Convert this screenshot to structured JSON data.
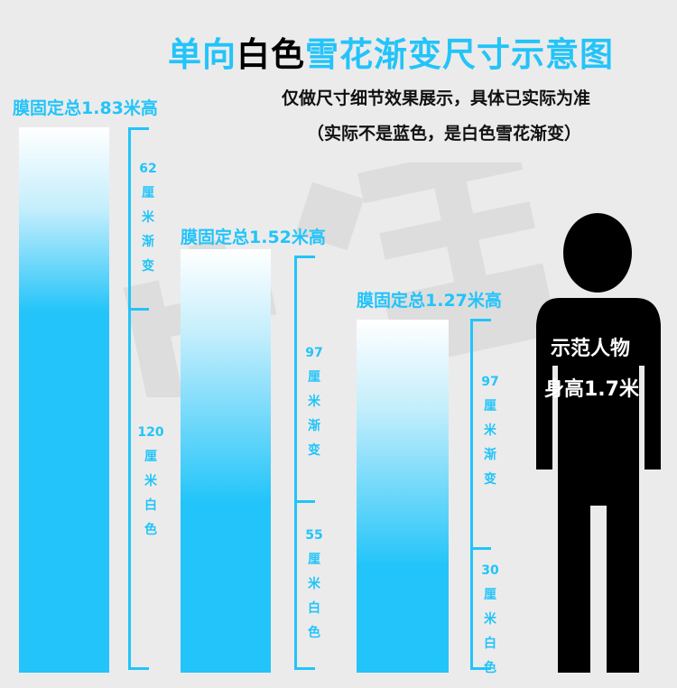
{
  "title": {
    "part1": "单向",
    "part2": "白色",
    "part3": "雪花渐变尺寸示意图"
  },
  "notes": [
    "仅做尺寸细节效果展示，具体已实际为准",
    "（实际不是蓝色，是白色雪花渐变）"
  ],
  "colors": {
    "accent": "#22c4f9",
    "background": "#ecebeb",
    "person": "#000000"
  },
  "bars": [
    {
      "label": "膜固定总1.83米高",
      "gradient_text": [
        "62",
        "厘",
        "米",
        "渐",
        "变"
      ],
      "white_text": [
        "120",
        "厘",
        "米",
        "白",
        "色"
      ],
      "total_cm": 183,
      "gradient_cm": 62,
      "white_cm": 120
    },
    {
      "label": "膜固定总1.52米高",
      "gradient_text": [
        "97",
        "厘",
        "米",
        "渐",
        "变"
      ],
      "white_text": [
        "55",
        "厘",
        "米",
        "白",
        "色"
      ],
      "total_cm": 152,
      "gradient_cm": 97,
      "white_cm": 55
    },
    {
      "label": "膜固定总1.27米高",
      "gradient_text": [
        "97",
        "厘",
        "米",
        "渐",
        "变"
      ],
      "white_text": [
        "30",
        "厘",
        "米",
        "白",
        "色"
      ],
      "total_cm": 127,
      "gradient_cm": 97,
      "white_cm": 30
    }
  ],
  "person": {
    "line1": "示范人物",
    "line2": "身高1.7米",
    "icon": "person-silhouette-icon"
  }
}
